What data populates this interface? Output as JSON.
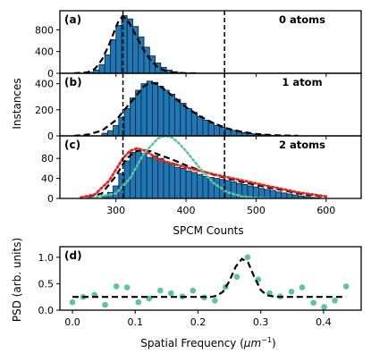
{
  "chart_data": [
    {
      "panel": "(a)",
      "type": "bar",
      "annotation": "0 atoms",
      "ylabel": "Instances",
      "xlabel": "SPCM Counts",
      "xlim": [
        220,
        650
      ],
      "ylim": [
        0,
        1150
      ],
      "yticks": [
        0,
        400,
        800
      ],
      "xticks": [
        300,
        400,
        500,
        600
      ],
      "vlines": [
        310,
        455
      ],
      "bin_width": 8,
      "hist": {
        "x": [
          260,
          268,
          276,
          284,
          292,
          300,
          308,
          316,
          324,
          332,
          340,
          348,
          356,
          364,
          372,
          380,
          388,
          396
        ],
        "values": [
          20,
          60,
          160,
          340,
          620,
          880,
          1060,
          1000,
          860,
          670,
          480,
          320,
          190,
          110,
          60,
          30,
          15,
          5
        ]
      },
      "fits": [
        {
          "style": "black-dashed",
          "x": [
            240,
            260,
            270,
            280,
            290,
            300,
            305,
            310,
            315,
            320,
            330,
            340,
            350,
            360,
            370,
            380,
            390,
            400,
            420
          ],
          "y": [
            0,
            20,
            80,
            250,
            520,
            850,
            990,
            1040,
            1000,
            900,
            660,
            420,
            230,
            110,
            45,
            18,
            6,
            2,
            0
          ]
        }
      ]
    },
    {
      "panel": "(b)",
      "type": "bar",
      "annotation": "1 atom",
      "xlim": [
        220,
        650
      ],
      "ylim": [
        0,
        480
      ],
      "yticks": [
        0,
        200,
        400
      ],
      "bin_width": 8,
      "hist": {
        "x": [
          280,
          288,
          296,
          304,
          312,
          320,
          328,
          336,
          344,
          352,
          360,
          368,
          376,
          384,
          392,
          400,
          408,
          416,
          424,
          432,
          440,
          448,
          456,
          464,
          472,
          480,
          488,
          496,
          504,
          512,
          520,
          528,
          536
        ],
        "values": [
          20,
          40,
          80,
          140,
          210,
          290,
          350,
          400,
          420,
          410,
          380,
          350,
          320,
          280,
          250,
          210,
          180,
          150,
          120,
          100,
          80,
          65,
          52,
          42,
          32,
          25,
          18,
          13,
          9,
          6,
          4,
          2,
          1
        ]
      },
      "fits": [
        {
          "style": "black-dashed",
          "x": [
            240,
            260,
            280,
            300,
            320,
            340,
            350,
            360,
            380,
            400,
            420,
            440,
            460,
            480,
            500,
            520,
            540,
            560
          ],
          "y": [
            0,
            10,
            40,
            120,
            250,
            380,
            410,
            395,
            310,
            220,
            150,
            95,
            55,
            30,
            15,
            7,
            3,
            1
          ]
        }
      ]
    },
    {
      "panel": "(c)",
      "type": "bar",
      "annotation": "2 atoms",
      "xlim": [
        220,
        650
      ],
      "ylim": [
        0,
        125
      ],
      "yticks": [
        0,
        40,
        80
      ],
      "bin_width": 8,
      "hist": {
        "x": [
          280,
          288,
          296,
          304,
          312,
          320,
          328,
          336,
          344,
          352,
          360,
          368,
          376,
          384,
          392,
          400,
          408,
          416,
          424,
          432,
          440,
          448,
          456,
          464,
          472,
          480,
          488,
          496,
          504,
          512,
          520,
          528,
          536,
          544,
          552,
          560,
          568,
          576,
          584
        ],
        "values": [
          5,
          12,
          25,
          50,
          75,
          92,
          95,
          90,
          82,
          85,
          80,
          72,
          70,
          62,
          60,
          55,
          52,
          48,
          44,
          42,
          40,
          38,
          36,
          33,
          30,
          28,
          25,
          23,
          20,
          18,
          16,
          13,
          11,
          9,
          7,
          5,
          4,
          2,
          1
        ]
      },
      "fits": [
        {
          "style": "black-dashed",
          "x": [
            260,
            280,
            300,
            315,
            330,
            340,
            350,
            360,
            380,
            400,
            420,
            440,
            460,
            480,
            500,
            520,
            540,
            560,
            580,
            600
          ],
          "y": [
            2,
            10,
            45,
            80,
            95,
            97,
            94,
            88,
            78,
            66,
            56,
            47,
            40,
            33,
            27,
            21,
            16,
            10,
            6,
            3
          ]
        },
        {
          "style": "red-dotted",
          "x": [
            250,
            270,
            290,
            310,
            320,
            330,
            340,
            350,
            360,
            380,
            400,
            420,
            440,
            460,
            480,
            500,
            520,
            540,
            560,
            580,
            600
          ],
          "y": [
            2,
            8,
            35,
            80,
            95,
            100,
            96,
            88,
            78,
            70,
            62,
            55,
            48,
            42,
            36,
            30,
            24,
            18,
            12,
            8,
            4
          ]
        },
        {
          "style": "teal-dotted",
          "x": [
            260,
            300,
            320,
            340,
            360,
            370,
            380,
            390,
            400,
            420,
            440,
            460,
            480,
            500,
            520
          ],
          "y": [
            0,
            10,
            40,
            90,
            120,
            125,
            122,
            110,
            95,
            60,
            30,
            12,
            4,
            1,
            0
          ]
        }
      ]
    },
    {
      "panel": "(d)",
      "type": "scatter",
      "xlabel": "Spatial Frequency (μm⁻¹)",
      "ylabel": "PSD (arb. units)",
      "xlim": [
        -0.02,
        0.46
      ],
      "ylim": [
        0,
        1.2
      ],
      "xticks": [
        0.0,
        0.1,
        0.2,
        0.3,
        0.4
      ],
      "yticks": [
        0.0,
        0.5,
        1.0
      ],
      "points": {
        "x": [
          0.0,
          0.017,
          0.035,
          0.052,
          0.07,
          0.087,
          0.105,
          0.122,
          0.14,
          0.157,
          0.175,
          0.192,
          0.21,
          0.227,
          0.244,
          0.262,
          0.279,
          0.296,
          0.314,
          0.331,
          0.349,
          0.366,
          0.384,
          0.401,
          0.418,
          0.436
        ],
        "y": [
          0.15,
          0.25,
          0.29,
          0.1,
          0.45,
          0.43,
          0.15,
          0.22,
          0.37,
          0.32,
          0.26,
          0.37,
          0.24,
          0.18,
          0.44,
          0.63,
          1.0,
          0.58,
          0.32,
          0.26,
          0.35,
          0.43,
          0.14,
          0.06,
          0.18,
          0.45
        ]
      },
      "fit": {
        "style": "black-dashed",
        "x": [
          0.0,
          0.02,
          0.04,
          0.06,
          0.08,
          0.1,
          0.12,
          0.14,
          0.16,
          0.18,
          0.2,
          0.21,
          0.22,
          0.23,
          0.24,
          0.25,
          0.26,
          0.27,
          0.28,
          0.29,
          0.3,
          0.31,
          0.32,
          0.33,
          0.34,
          0.36,
          0.38,
          0.4,
          0.42,
          0.436
        ],
        "y": [
          0.25,
          0.25,
          0.25,
          0.25,
          0.25,
          0.25,
          0.25,
          0.25,
          0.25,
          0.25,
          0.25,
          0.25,
          0.25,
          0.27,
          0.35,
          0.55,
          0.82,
          0.97,
          0.9,
          0.62,
          0.38,
          0.28,
          0.26,
          0.25,
          0.25,
          0.25,
          0.25,
          0.25,
          0.25,
          0.25
        ]
      }
    }
  ],
  "colors": {
    "bar": "#1f77b4",
    "bar_edge": "#0a1f33",
    "fit": "#000000",
    "red": "#e8231f",
    "teal": "#5ec3a0",
    "point": "#5ec3a0"
  },
  "text": {
    "ylabel_top": "Instances",
    "xlabel_top": "SPCM Counts",
    "ylabel_d": "PSD (arb. units)",
    "xlabel_d_prefix": "Spatial Frequency (",
    "xlabel_d_mu": "μ",
    "xlabel_d_unit": "m",
    "xlabel_d_exp": "−1",
    "xlabel_d_suffix": ")"
  }
}
